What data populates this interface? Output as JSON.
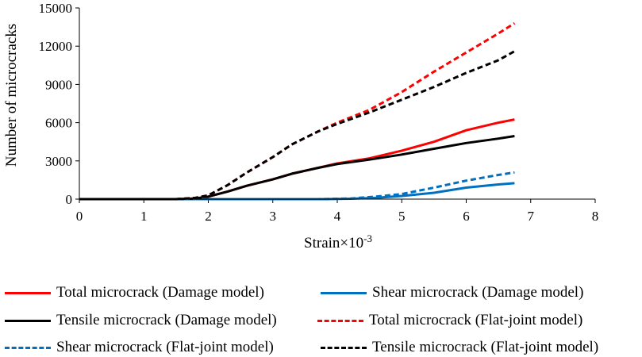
{
  "chart_data": {
    "type": "line",
    "title": "",
    "xlabel": "Strain×10",
    "xlabel_sup": "-3",
    "ylabel": "Number of microcracks",
    "xlim": [
      0,
      8
    ],
    "ylim": [
      0,
      15000
    ],
    "xticks": [
      0,
      1,
      2,
      3,
      4,
      5,
      6,
      7,
      8
    ],
    "yticks": [
      0,
      3000,
      6000,
      9000,
      12000,
      15000
    ],
    "xtick_labels": [
      "0",
      "1",
      "2",
      "3",
      "4",
      "5",
      "6",
      "7",
      "8"
    ],
    "ytick_labels": [
      "0",
      "3000",
      "6000",
      "9000",
      "12000",
      "15000"
    ],
    "grid": false,
    "legend_position": "bottom",
    "series": [
      {
        "name": "Total microcrack (Damage model)",
        "color": "#ff0000",
        "dash": "solid",
        "x": [
          0,
          1.5,
          1.8,
          2.0,
          2.3,
          2.6,
          3.0,
          3.3,
          3.7,
          4.0,
          4.5,
          5.0,
          5.5,
          6.0,
          6.5,
          6.75
        ],
        "y": [
          0,
          0,
          50,
          200,
          600,
          1050,
          1550,
          2000,
          2450,
          2800,
          3200,
          3800,
          4500,
          5400,
          6000,
          6250
        ]
      },
      {
        "name": "Shear microcrack (Damage model)",
        "color": "#0070c0",
        "dash": "solid",
        "x": [
          0,
          3.8,
          4.2,
          4.6,
          5.0,
          5.5,
          6.0,
          6.5,
          6.75
        ],
        "y": [
          0,
          0,
          30,
          100,
          250,
          500,
          900,
          1150,
          1250
        ]
      },
      {
        "name": "Tensile microcrack (Damage model)",
        "color": "#000000",
        "dash": "solid",
        "x": [
          0,
          1.5,
          1.8,
          2.0,
          2.3,
          2.6,
          3.0,
          3.3,
          3.7,
          4.0,
          4.5,
          5.0,
          5.5,
          6.0,
          6.5,
          6.75
        ],
        "y": [
          0,
          0,
          50,
          200,
          600,
          1050,
          1550,
          2000,
          2450,
          2750,
          3100,
          3500,
          3950,
          4400,
          4750,
          4950
        ]
      },
      {
        "name": "Total microcrack (Flat-joint model)",
        "color": "#ff0000",
        "dash": "dashed",
        "x": [
          0,
          1.5,
          1.8,
          2.0,
          2.3,
          2.6,
          3.0,
          3.3,
          3.7,
          4.0,
          4.5,
          5.0,
          5.5,
          6.0,
          6.5,
          6.75
        ],
        "y": [
          0,
          0,
          100,
          300,
          1100,
          2100,
          3300,
          4300,
          5300,
          6000,
          7000,
          8400,
          10000,
          11500,
          13000,
          13800
        ]
      },
      {
        "name": "Shear microcrack (Flat-joint model)",
        "color": "#0070c0",
        "dash": "dashed",
        "x": [
          0,
          3.7,
          4.2,
          4.6,
          5.0,
          5.5,
          6.0,
          6.5,
          6.75
        ],
        "y": [
          0,
          0,
          50,
          200,
          400,
          900,
          1450,
          1900,
          2100
        ]
      },
      {
        "name": "Tensile microcrack (Flat-joint model)",
        "color": "#000000",
        "dash": "dashed",
        "x": [
          0,
          1.5,
          1.8,
          2.0,
          2.3,
          2.6,
          3.0,
          3.3,
          3.7,
          4.0,
          4.5,
          5.0,
          5.5,
          6.0,
          6.5,
          6.75
        ],
        "y": [
          0,
          0,
          100,
          300,
          1100,
          2100,
          3300,
          4300,
          5300,
          5900,
          6800,
          7800,
          8800,
          9900,
          10900,
          11600
        ]
      }
    ]
  }
}
